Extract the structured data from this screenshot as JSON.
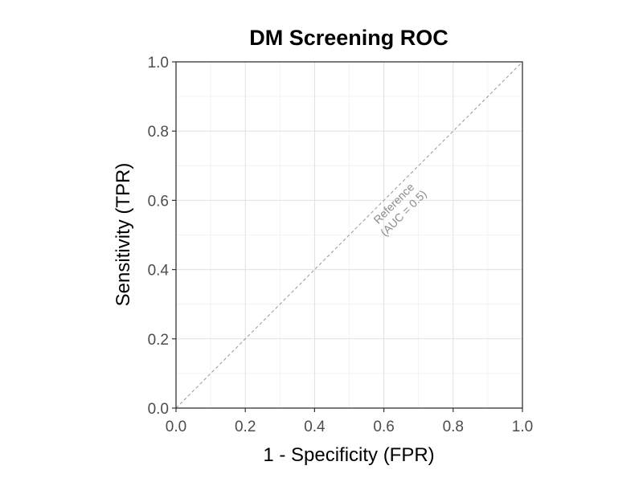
{
  "chart_data": {
    "type": "line",
    "title": "DM Screening ROC",
    "xlabel": "1 - Specificity (FPR)",
    "ylabel": "Sensitivity (TPR)",
    "xlim": [
      0,
      1
    ],
    "ylim": [
      0,
      1
    ],
    "x_ticks": [
      "0.0",
      "0.2",
      "0.4",
      "0.6",
      "0.8",
      "1.0"
    ],
    "y_ticks": [
      "0.0",
      "0.2",
      "0.4",
      "0.6",
      "0.8",
      "1.0"
    ],
    "grid": true,
    "legend": "none",
    "series": [
      {
        "x": [
          0,
          1
        ],
        "y": [
          0,
          1
        ],
        "line_style": "dashed",
        "color": "#999999"
      }
    ],
    "annotations": [
      {
        "line1": "Reference",
        "line2": "(AUC = 0.5)",
        "x": 0.64,
        "y": 0.58
      }
    ]
  }
}
